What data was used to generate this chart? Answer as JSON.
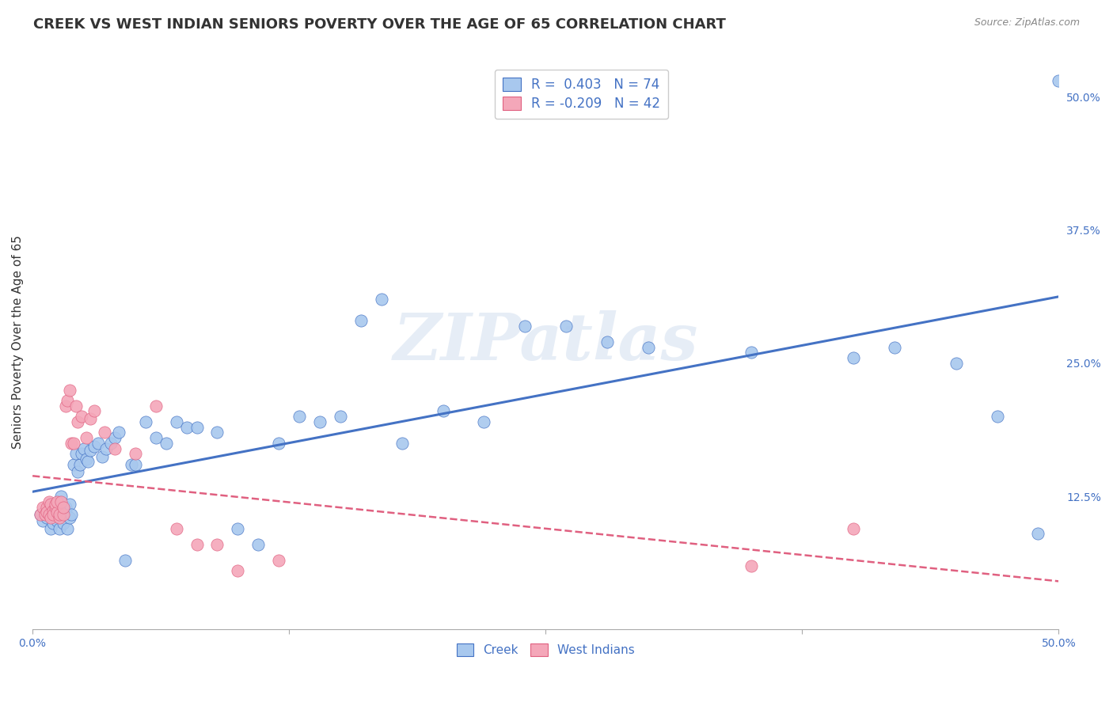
{
  "title": "CREEK VS WEST INDIAN SENIORS POVERTY OVER THE AGE OF 65 CORRELATION CHART",
  "source": "Source: ZipAtlas.com",
  "ylabel": "Seniors Poverty Over the Age of 65",
  "xlim": [
    0.0,
    0.5
  ],
  "ylim": [
    0.0,
    0.54
  ],
  "creek_color": "#A8C8EE",
  "creek_edge_color": "#4472C4",
  "creek_line_color": "#4472C4",
  "west_indian_color": "#F4A7B9",
  "west_indian_edge_color": "#E06080",
  "west_indian_line_color": "#E06080",
  "watermark": "ZIPatlas",
  "creek_R": 0.403,
  "creek_N": 74,
  "wi_R": -0.209,
  "wi_N": 42,
  "background_color": "#FFFFFF",
  "grid_color": "#CCCCCC",
  "title_fontsize": 13,
  "axis_label_fontsize": 11,
  "tick_fontsize": 10,
  "creek_scatter_x": [
    0.004,
    0.005,
    0.006,
    0.007,
    0.008,
    0.008,
    0.009,
    0.009,
    0.01,
    0.01,
    0.011,
    0.011,
    0.012,
    0.012,
    0.013,
    0.013,
    0.014,
    0.014,
    0.015,
    0.015,
    0.016,
    0.016,
    0.017,
    0.018,
    0.018,
    0.019,
    0.02,
    0.021,
    0.022,
    0.023,
    0.024,
    0.025,
    0.026,
    0.027,
    0.028,
    0.03,
    0.032,
    0.034,
    0.036,
    0.038,
    0.04,
    0.042,
    0.045,
    0.048,
    0.05,
    0.055,
    0.06,
    0.065,
    0.07,
    0.075,
    0.08,
    0.09,
    0.1,
    0.11,
    0.12,
    0.13,
    0.14,
    0.15,
    0.16,
    0.17,
    0.18,
    0.2,
    0.22,
    0.24,
    0.26,
    0.28,
    0.3,
    0.35,
    0.4,
    0.42,
    0.45,
    0.47,
    0.49,
    0.5
  ],
  "creek_scatter_y": [
    0.108,
    0.102,
    0.11,
    0.105,
    0.112,
    0.108,
    0.095,
    0.115,
    0.1,
    0.118,
    0.108,
    0.115,
    0.102,
    0.11,
    0.095,
    0.12,
    0.125,
    0.108,
    0.115,
    0.1,
    0.115,
    0.11,
    0.095,
    0.105,
    0.118,
    0.108,
    0.155,
    0.165,
    0.148,
    0.155,
    0.165,
    0.17,
    0.16,
    0.158,
    0.168,
    0.172,
    0.175,
    0.162,
    0.17,
    0.175,
    0.18,
    0.185,
    0.065,
    0.155,
    0.155,
    0.195,
    0.18,
    0.175,
    0.195,
    0.19,
    0.19,
    0.185,
    0.095,
    0.08,
    0.175,
    0.2,
    0.195,
    0.2,
    0.29,
    0.31,
    0.175,
    0.205,
    0.195,
    0.285,
    0.285,
    0.27,
    0.265,
    0.26,
    0.255,
    0.265,
    0.25,
    0.2,
    0.09,
    0.515
  ],
  "wi_scatter_x": [
    0.004,
    0.005,
    0.006,
    0.007,
    0.007,
    0.008,
    0.008,
    0.009,
    0.009,
    0.01,
    0.01,
    0.011,
    0.011,
    0.012,
    0.012,
    0.013,
    0.013,
    0.014,
    0.015,
    0.015,
    0.016,
    0.017,
    0.018,
    0.019,
    0.02,
    0.021,
    0.022,
    0.024,
    0.026,
    0.028,
    0.03,
    0.035,
    0.04,
    0.05,
    0.06,
    0.07,
    0.08,
    0.09,
    0.1,
    0.12,
    0.35,
    0.4
  ],
  "wi_scatter_y": [
    0.108,
    0.115,
    0.108,
    0.115,
    0.11,
    0.108,
    0.12,
    0.105,
    0.118,
    0.112,
    0.108,
    0.115,
    0.118,
    0.11,
    0.12,
    0.105,
    0.108,
    0.12,
    0.108,
    0.115,
    0.21,
    0.215,
    0.225,
    0.175,
    0.175,
    0.21,
    0.195,
    0.2,
    0.18,
    0.198,
    0.205,
    0.185,
    0.17,
    0.165,
    0.21,
    0.095,
    0.08,
    0.08,
    0.055,
    0.065,
    0.06,
    0.095
  ]
}
